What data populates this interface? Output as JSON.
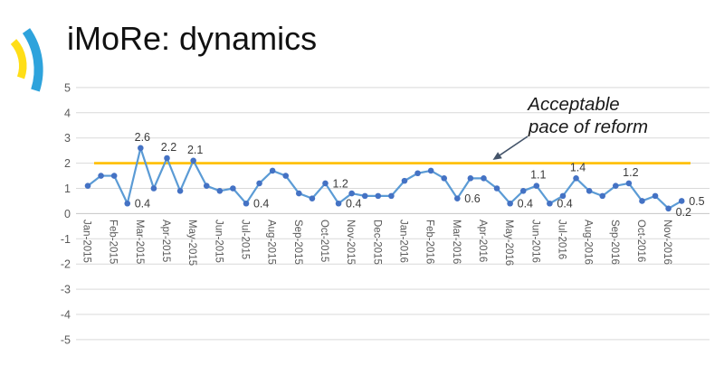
{
  "header": {
    "title": "iMoRe: dynamics"
  },
  "logo": {
    "yellow": "#FFDE17",
    "blue": "#2EA3DC"
  },
  "chart_data": {
    "type": "line",
    "title": "iMoRe: dynamics",
    "x_tick_labels": [
      "Jan-2015",
      "Feb-2015",
      "Mar-2015",
      "Apr-2015",
      "May-2015",
      "Jun-2015",
      "Jul-2015",
      "Aug-2015",
      "Sep-2015",
      "Oct-2015",
      "Nov-2015",
      "Dec-2015",
      "Jan-2016",
      "Feb-2016",
      "Mar-2016",
      "Apr-2016",
      "May-2016",
      "Jun-2016",
      "Jul-2016",
      "Aug-2016",
      "Sep-2016",
      "Oct-2016",
      "Nov-2016"
    ],
    "points_per_month": 2,
    "values": [
      1.1,
      1.5,
      1.5,
      0.4,
      2.6,
      1.0,
      2.2,
      0.9,
      2.1,
      1.1,
      0.9,
      1.0,
      0.4,
      1.2,
      1.7,
      1.5,
      0.8,
      0.6,
      1.2,
      0.4,
      0.8,
      0.7,
      0.7,
      0.7,
      1.3,
      1.6,
      1.7,
      1.4,
      0.6,
      1.4,
      1.4,
      1.0,
      0.4,
      0.9,
      1.1,
      0.4,
      0.7,
      1.4,
      0.9,
      0.7,
      1.1,
      1.2,
      0.5,
      0.7,
      0.2,
      0.5
    ],
    "point_labels": [
      {
        "index": 3,
        "text": "0.4",
        "pos": "right"
      },
      {
        "index": 4,
        "text": "2.6",
        "pos": "above"
      },
      {
        "index": 6,
        "text": "2.2",
        "pos": "above"
      },
      {
        "index": 8,
        "text": "2.1",
        "pos": "above"
      },
      {
        "index": 12,
        "text": "0.4",
        "pos": "right"
      },
      {
        "index": 18,
        "text": "1.2",
        "pos": "right"
      },
      {
        "index": 19,
        "text": "0.4",
        "pos": "right"
      },
      {
        "index": 28,
        "text": "0.6",
        "pos": "right"
      },
      {
        "index": 32,
        "text": "0.4",
        "pos": "right"
      },
      {
        "index": 34,
        "text": "1.1",
        "pos": "above"
      },
      {
        "index": 35,
        "text": "0.4",
        "pos": "right"
      },
      {
        "index": 37,
        "text": "1.4",
        "pos": "above"
      },
      {
        "index": 41,
        "text": "1.2",
        "pos": "above"
      },
      {
        "index": 44,
        "text": "0.2",
        "pos": "right-low"
      },
      {
        "index": 45,
        "text": "0.5",
        "pos": "right"
      }
    ],
    "ylim": [
      -5,
      5
    ],
    "y_ticks": [
      5,
      4,
      3,
      2,
      1,
      0,
      -1,
      -2,
      -3,
      -4,
      -5
    ],
    "grid": true,
    "legend": "none",
    "reference_line": {
      "value": 2
    },
    "annotation": {
      "line1": "Acceptable",
      "line2": "pace of reform"
    },
    "colors": {
      "line": "#5B9BD5",
      "marker": "#4472C4",
      "reference": "#FFC000",
      "gridline": "#D9D9D9",
      "zero_gridline": "#C6C6C6",
      "axis_text": "#595959",
      "data_label_text": "#3A3A3A",
      "annotation_text": "#1A1A1A",
      "arrow": "#44546A"
    }
  }
}
